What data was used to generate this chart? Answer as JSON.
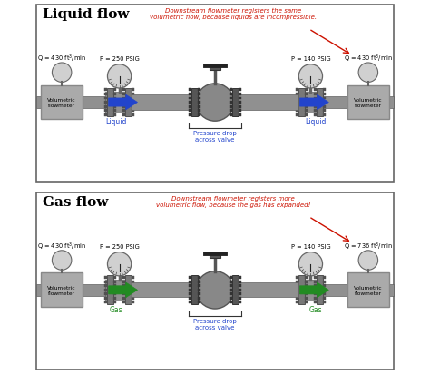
{
  "liquid_title": "Liquid flow",
  "gas_title": "Gas flow",
  "liquid_annotation": "Downstream flowmeter registers the same\nvolumetric flow, because liquids are incompressible.",
  "gas_annotation": "Downstream flowmeter registers more\nvolumetric flow, because the gas has expanded!",
  "liquid_Q_left": "Q = 430 ft$^3$/min",
  "liquid_Q_right": "Q = 430 ft$^3$/min",
  "gas_Q_left": "Q = 430 ft$^3$/min",
  "gas_Q_right": "Q = 736 ft$^3$/min",
  "P_left": "P = 250 PSIG",
  "P_right": "P = 140 PSIG",
  "liquid_label": "Liquid",
  "gas_label": "Gas",
  "pressure_drop_label": "Pressure drop\nacross valve",
  "flowmeter_label": "Volumetric\nflowmeter",
  "arrow_color_liquid": "#2244cc",
  "arrow_color_gas": "#228B22",
  "pipe_color": "#909090",
  "pipe_dark": "#606060",
  "flange_color": "#787878",
  "flange_dark": "#505050",
  "box_color": "#aaaaaa",
  "box_dark": "#888888",
  "gauge_face": "#d0d0d0",
  "gauge_ring": "#777777",
  "valve_color": "#888888",
  "valve_dark": "#555555",
  "red_color": "#cc1100",
  "blue_label_color": "#2244cc",
  "green_label_color": "#228B22",
  "pressure_drop_color": "#2244cc",
  "title_color": "#000000"
}
